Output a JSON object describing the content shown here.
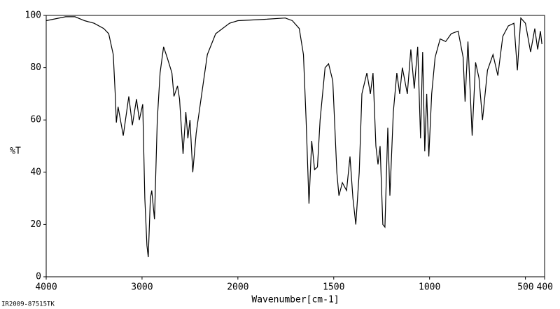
{
  "chart_data": {
    "type": "line",
    "xlabel": "Wavenumber[cm-1]",
    "ylabel": "%T",
    "footer": "IR2009-87515TK",
    "xlim": [
      4000,
      400
    ],
    "ylim": [
      0,
      100
    ],
    "x_scale_break": 2000,
    "xticks": [
      4000,
      3000,
      2000,
      1500,
      1000,
      500,
      400
    ],
    "yticks": [
      0,
      20,
      40,
      60,
      80,
      100
    ],
    "series": [
      {
        "color": "#000000",
        "x": [
          4000,
          3797,
          3700,
          3600,
          3500,
          3400,
          3348,
          3300,
          3280,
          3268,
          3250,
          3196,
          3138,
          3101,
          3058,
          3029,
          2993,
          2971,
          2949,
          2935,
          2913,
          2899,
          2870,
          2841,
          2812,
          2775,
          2739,
          2688,
          2667,
          2630,
          2609,
          2572,
          2543,
          2522,
          2500,
          2471,
          2435,
          2377,
          2319,
          2232,
          2087,
          2000,
          1862,
          1753,
          1716,
          1680,
          1658,
          1644,
          1629,
          1615,
          1600,
          1585,
          1571,
          1545,
          1527,
          1505,
          1484,
          1473,
          1455,
          1433,
          1415,
          1400,
          1385,
          1367,
          1353,
          1327,
          1309,
          1295,
          1280,
          1269,
          1258,
          1244,
          1233,
          1218,
          1207,
          1189,
          1171,
          1156,
          1142,
          1116,
          1098,
          1080,
          1062,
          1047,
          1036,
          1025,
          1015,
          1004,
          989,
          971,
          945,
          916,
          887,
          851,
          825,
          815,
          800,
          778,
          760,
          742,
          724,
          698,
          669,
          644,
          618,
          589,
          560,
          542,
          524,
          500,
          473,
          451,
          436,
          422,
          414
        ],
        "values": [
          98,
          99.5,
          99.5,
          98,
          97,
          95,
          93,
          85,
          70,
          59,
          65,
          54,
          69,
          58,
          68,
          60,
          66,
          30,
          12,
          7.5,
          30,
          33,
          22,
          60,
          78,
          88,
          84,
          78,
          69,
          73,
          68,
          47,
          63,
          53,
          60,
          40,
          55,
          70,
          85,
          93,
          97,
          98,
          98.5,
          99,
          98,
          95,
          85,
          60,
          28,
          52,
          41,
          42,
          60,
          80,
          81.5,
          75,
          40,
          31,
          36,
          33,
          46,
          30,
          20,
          40,
          70,
          78,
          70,
          78,
          50,
          43,
          50,
          20,
          19,
          57,
          31,
          63,
          78,
          70,
          80,
          70,
          87,
          72,
          88,
          53,
          86,
          48,
          70,
          46,
          70,
          84,
          91,
          90,
          93,
          94,
          84,
          67,
          90,
          54,
          82,
          76,
          60,
          79,
          85,
          77,
          92,
          96,
          97,
          79,
          99,
          97,
          86,
          95,
          87,
          94,
          89
        ]
      }
    ]
  }
}
